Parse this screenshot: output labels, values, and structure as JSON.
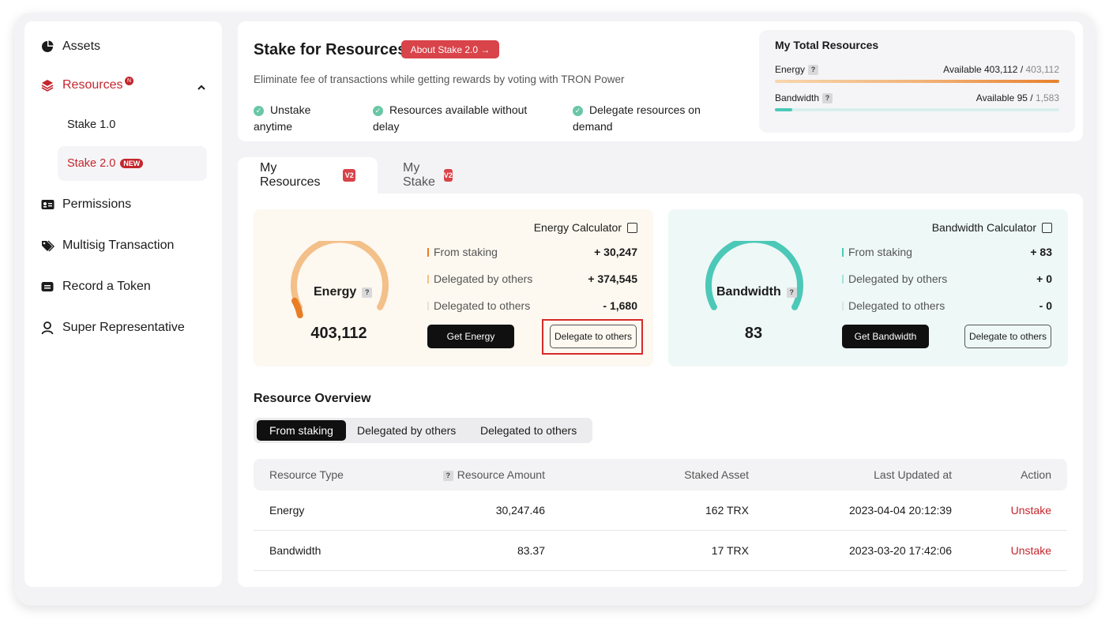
{
  "sidebar": {
    "items": [
      {
        "label": "Assets"
      },
      {
        "label": "Resources"
      },
      {
        "label": "Permissions"
      },
      {
        "label": "Multisig Transaction"
      },
      {
        "label": "Record a Token"
      },
      {
        "label": "Super Representative"
      }
    ],
    "resources_badge": "N",
    "sub_items": [
      {
        "label": "Stake 1.0"
      },
      {
        "label": "Stake 2.0",
        "badge": "NEW"
      }
    ]
  },
  "header": {
    "title": "Stake for Resources",
    "about_button": "About Stake 2.0 →",
    "subtitle": "Eliminate fee of transactions while getting rewards by voting with TRON Power",
    "features": [
      {
        "line1": "Unstake",
        "line2": "anytime"
      },
      {
        "line1": "Resources available without",
        "line2": "delay"
      },
      {
        "line1": "Delegate resources on",
        "line2": "demand"
      }
    ]
  },
  "total_resources": {
    "title": "My Total Resources",
    "energy": {
      "label": "Energy",
      "available_label": "Available 403,112",
      "sep": " / ",
      "total": "403,112",
      "fraction": 1.0
    },
    "bandwidth": {
      "label": "Bandwidth",
      "available_label": "Available 95",
      "sep": " / ",
      "total": "1,583",
      "fraction": 0.06
    }
  },
  "tabs": [
    {
      "label": "My Resources",
      "icon": "V2"
    },
    {
      "label": "My Stake",
      "icon": "V2"
    }
  ],
  "energy_calc": {
    "title": "Energy Calculator",
    "gauge_label": "Energy",
    "gauge_value": "403,112",
    "gauge_fraction": 0.08,
    "rows": [
      {
        "label": "From staking",
        "value": "+ 30,247"
      },
      {
        "label": "Delegated by others",
        "value": "+ 374,545"
      },
      {
        "label": "Delegated to others",
        "value": "- 1,680"
      }
    ],
    "get_button": "Get Energy",
    "delegate_button": "Delegate to others"
  },
  "bandwidth_calc": {
    "title": "Bandwidth Calculator",
    "gauge_label": "Bandwidth",
    "gauge_value": "83",
    "rows": [
      {
        "label": "From staking",
        "value": "+ 83"
      },
      {
        "label": "Delegated by others",
        "value": "+ 0"
      },
      {
        "label": "Delegated to others",
        "value": "- 0"
      }
    ],
    "get_button": "Get Bandwidth",
    "delegate_button": "Delegate to others"
  },
  "overview": {
    "title": "Resource Overview",
    "segments": [
      "From staking",
      "Delegated by others",
      "Delegated to others"
    ],
    "columns": [
      "Resource Type",
      "Resource Amount",
      "Staked Asset",
      "Last Updated at",
      "Action"
    ],
    "rows": [
      {
        "type": "Energy",
        "amount": "30,247.46",
        "staked": "162 TRX",
        "updated": "2023-04-04 20:12:39",
        "action": "Unstake"
      },
      {
        "type": "Bandwidth",
        "amount": "83.37",
        "staked": "17 TRX",
        "updated": "2023-03-20 17:42:06",
        "action": "Unstake"
      }
    ]
  },
  "colors": {
    "accent_red": "#c4262e",
    "energy_orange": "#f0bf7d",
    "energy_deep": "#e87d25",
    "bandwidth_teal": "#4cc8b8",
    "energy_card_bg": "#fdf8f0",
    "bandwidth_card_bg": "#eef8f6"
  }
}
